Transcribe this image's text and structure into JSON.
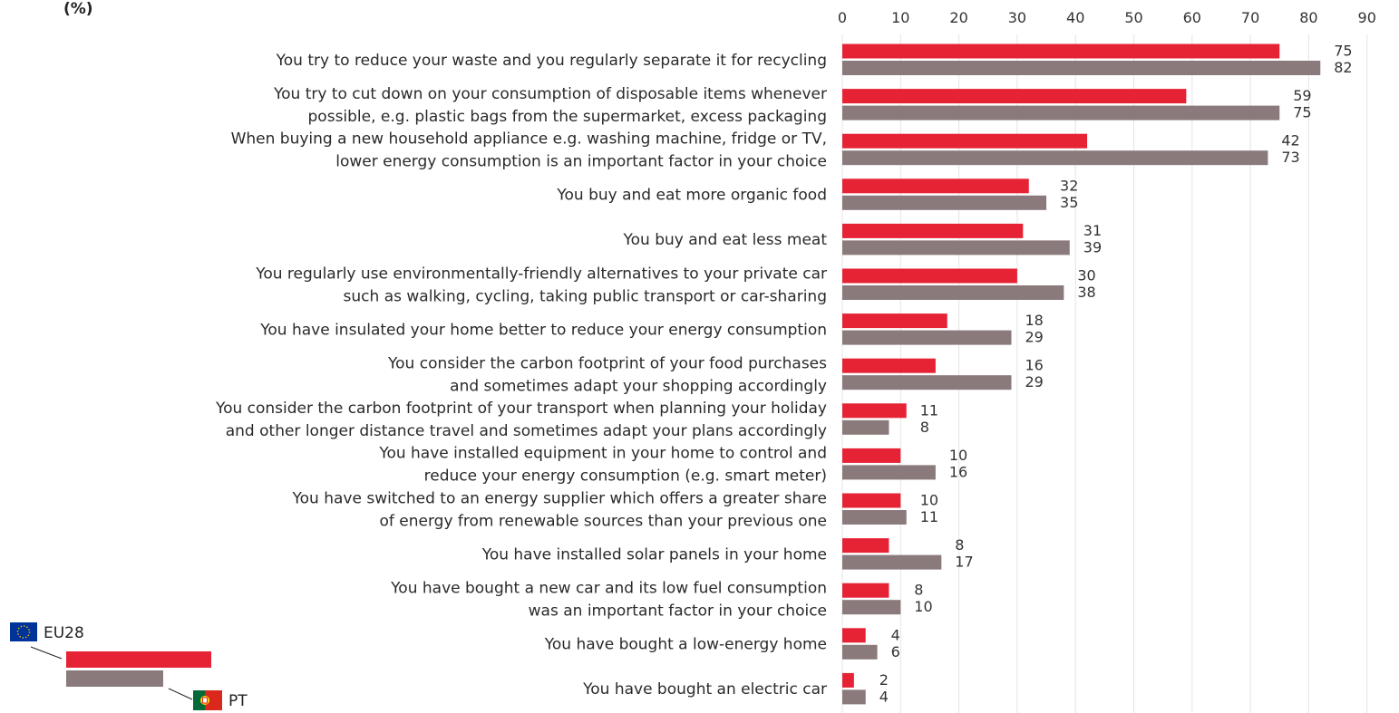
{
  "header": {
    "unit_label": "(%)"
  },
  "colors": {
    "eu": "#E52335",
    "pt": "#8A7A7C",
    "grid": "#E4E4E4"
  },
  "legend": {
    "series_a_label": "EU28",
    "series_b_label": "PT"
  },
  "chart_data": {
    "type": "bar",
    "orientation": "horizontal",
    "xlim": [
      0,
      90
    ],
    "xticks": [
      0,
      10,
      20,
      30,
      40,
      50,
      60,
      70,
      80,
      90
    ],
    "grid": true,
    "legend_position": "bottom-left",
    "categories": [
      [
        "You try to reduce your waste and you regularly separate it for recycling"
      ],
      [
        "You try to cut down on your consumption of disposable items whenever",
        "possible, e.g. plastic bags from the supermarket, excess packaging"
      ],
      [
        "When buying a new household appliance e.g. washing machine, fridge or TV,",
        "lower energy consumption is an important factor in your choice"
      ],
      [
        "You buy and eat more organic food"
      ],
      [
        "You buy and eat less meat"
      ],
      [
        "You regularly use environmentally-friendly alternatives to your private car",
        "such as walking, cycling, taking public transport or car-sharing"
      ],
      [
        "You have insulated your home better to reduce your energy consumption"
      ],
      [
        "You consider the carbon footprint of your food purchases",
        "and sometimes adapt your shopping accordingly"
      ],
      [
        "You consider the carbon footprint of your transport when planning your holiday",
        "and other longer distance travel and sometimes adapt your plans accordingly"
      ],
      [
        "You have installed equipment in your home to control and",
        "reduce your energy consumption (e.g. smart meter)"
      ],
      [
        "You have switched to an energy supplier which offers a greater share",
        "of energy from renewable sources than your previous one"
      ],
      [
        "You have installed solar panels in your home"
      ],
      [
        "You have bought a new car and its low fuel consumption",
        "was an important factor in your choice"
      ],
      [
        "You have bought a low-energy home"
      ],
      [
        "You have bought an electric car"
      ]
    ],
    "series": [
      {
        "name": "EU28",
        "values": [
          75,
          59,
          42,
          32,
          31,
          30,
          18,
          16,
          11,
          10,
          10,
          8,
          8,
          4,
          2
        ]
      },
      {
        "name": "PT",
        "values": [
          82,
          75,
          73,
          35,
          39,
          38,
          29,
          29,
          8,
          16,
          11,
          17,
          10,
          6,
          4
        ]
      }
    ]
  }
}
